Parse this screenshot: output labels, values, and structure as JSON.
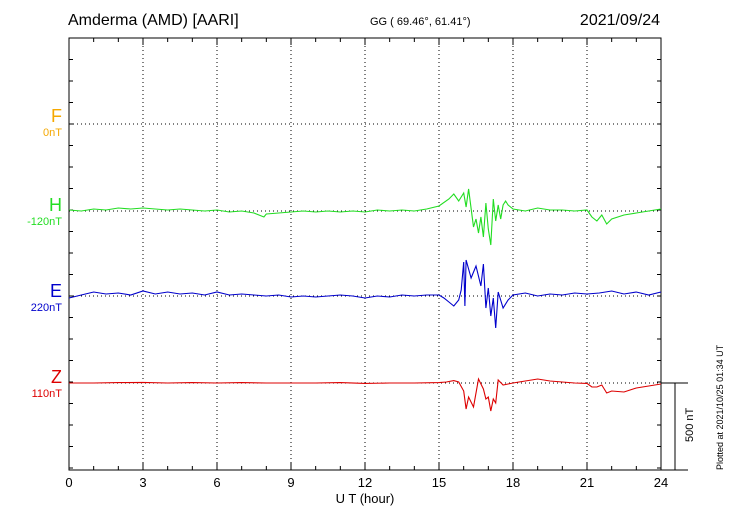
{
  "header": {
    "station": "Amderma (AMD)  [AARI]",
    "coords": "GG ( 69.46°,  61.41°)",
    "date": "2021/09/24"
  },
  "components": [
    {
      "name": "F",
      "baseline": "0nT",
      "color": "#f5a800"
    },
    {
      "name": "H",
      "baseline": "-120nT",
      "color": "#22dd22"
    },
    {
      "name": "E",
      "baseline": "220nT",
      "color": "#0000cc"
    },
    {
      "name": "Z",
      "baseline": "110nT",
      "color": "#dd0000"
    }
  ],
  "scale_label": "500 nT",
  "plotted_note": "Plotted at 2021/10/25 01:34 UT",
  "chart_data": {
    "type": "line",
    "xlabel": "U T (hour)",
    "xlim": [
      0,
      24
    ],
    "xticks": [
      "0",
      "3",
      "6",
      "9",
      "12",
      "15",
      "18",
      "21",
      "24"
    ],
    "grid": true,
    "series": [
      {
        "name": "F",
        "color": "#f5a800",
        "x": [],
        "values": []
      },
      {
        "name": "H",
        "color": "#22dd22",
        "x": [
          0,
          0.5,
          1,
          1.5,
          2,
          2.5,
          3,
          3.5,
          4,
          4.5,
          5,
          5.5,
          6,
          6.5,
          7,
          7.5,
          7.9,
          8,
          8.5,
          9,
          9.5,
          10,
          10.5,
          11,
          11.5,
          12,
          12.5,
          13,
          13.5,
          14,
          14.5,
          15,
          15.4,
          15.6,
          15.8,
          16,
          16.1,
          16.2,
          16.4,
          16.5,
          16.6,
          16.7,
          16.8,
          16.9,
          17,
          17.1,
          17.2,
          17.3,
          17.4,
          17.5,
          17.6,
          17.7,
          17.8,
          18,
          18.5,
          19,
          19.5,
          20,
          20.5,
          21,
          21.2,
          21.4,
          21.6,
          21.8,
          22,
          22.5,
          23,
          23.5,
          24
        ],
        "values": [
          5,
          0,
          10,
          5,
          15,
          10,
          15,
          10,
          5,
          10,
          5,
          0,
          5,
          -5,
          0,
          -10,
          -30,
          -15,
          -10,
          -5,
          0,
          -5,
          0,
          -5,
          0,
          -5,
          5,
          0,
          5,
          0,
          10,
          25,
          60,
          85,
          50,
          90,
          20,
          110,
          -80,
          -40,
          -110,
          -30,
          -130,
          40,
          -90,
          -170,
          60,
          -50,
          30,
          -40,
          30,
          50,
          30,
          10,
          0,
          15,
          5,
          5,
          0,
          5,
          -30,
          -50,
          -20,
          -65,
          -40,
          -20,
          -10,
          0,
          10
        ]
      },
      {
        "name": "E",
        "color": "#0000cc",
        "x": [
          0,
          0.5,
          1,
          1.5,
          2,
          2.5,
          3,
          3.5,
          4,
          4.5,
          5,
          5.5,
          6,
          6.5,
          7,
          7.5,
          8,
          8.5,
          9,
          9.5,
          10,
          10.5,
          11,
          11.5,
          12,
          12.5,
          13,
          13.5,
          14,
          14.5,
          15,
          15.2,
          15.4,
          15.6,
          15.8,
          15.9,
          16,
          16.05,
          16.1,
          16.3,
          16.5,
          16.7,
          16.8,
          16.9,
          17,
          17.1,
          17.2,
          17.3,
          17.4,
          17.6,
          17.8,
          18,
          18.5,
          19,
          19.5,
          20,
          20.5,
          21,
          21.5,
          22,
          22.5,
          23,
          23.5,
          24
        ],
        "values": [
          -10,
          5,
          20,
          10,
          15,
          5,
          25,
          10,
          20,
          10,
          15,
          5,
          20,
          5,
          10,
          5,
          0,
          5,
          -5,
          0,
          -5,
          0,
          5,
          0,
          -10,
          0,
          -5,
          5,
          0,
          5,
          5,
          -10,
          -30,
          -50,
          -20,
          30,
          170,
          -50,
          180,
          90,
          150,
          50,
          160,
          -60,
          40,
          -100,
          -10,
          -160,
          20,
          -60,
          -20,
          5,
          15,
          0,
          10,
          5,
          15,
          10,
          15,
          25,
          10,
          20,
          5,
          20
        ]
      },
      {
        "name": "Z",
        "color": "#dd0000",
        "x": [
          0,
          1,
          2,
          3,
          4,
          5,
          6,
          7,
          8,
          9,
          10,
          11,
          12,
          13,
          14,
          15,
          15.3,
          15.6,
          15.8,
          16,
          16.1,
          16.2,
          16.4,
          16.6,
          16.8,
          16.9,
          17,
          17.1,
          17.2,
          17.3,
          17.4,
          17.6,
          17.8,
          18,
          18.5,
          19,
          19.5,
          20,
          20.5,
          21,
          21.2,
          21.4,
          21.6,
          21.8,
          22,
          22.5,
          23,
          23.5,
          24
        ],
        "values": [
          0,
          0,
          2,
          3,
          0,
          2,
          0,
          2,
          0,
          0,
          0,
          2,
          -2,
          0,
          0,
          2,
          5,
          12,
          5,
          -40,
          -130,
          -70,
          -120,
          20,
          -30,
          -80,
          -70,
          -140,
          -80,
          -100,
          15,
          -10,
          -5,
          0,
          10,
          20,
          10,
          5,
          0,
          -2,
          -20,
          -20,
          -10,
          -50,
          -40,
          -45,
          -25,
          -15,
          -5
        ]
      }
    ]
  }
}
